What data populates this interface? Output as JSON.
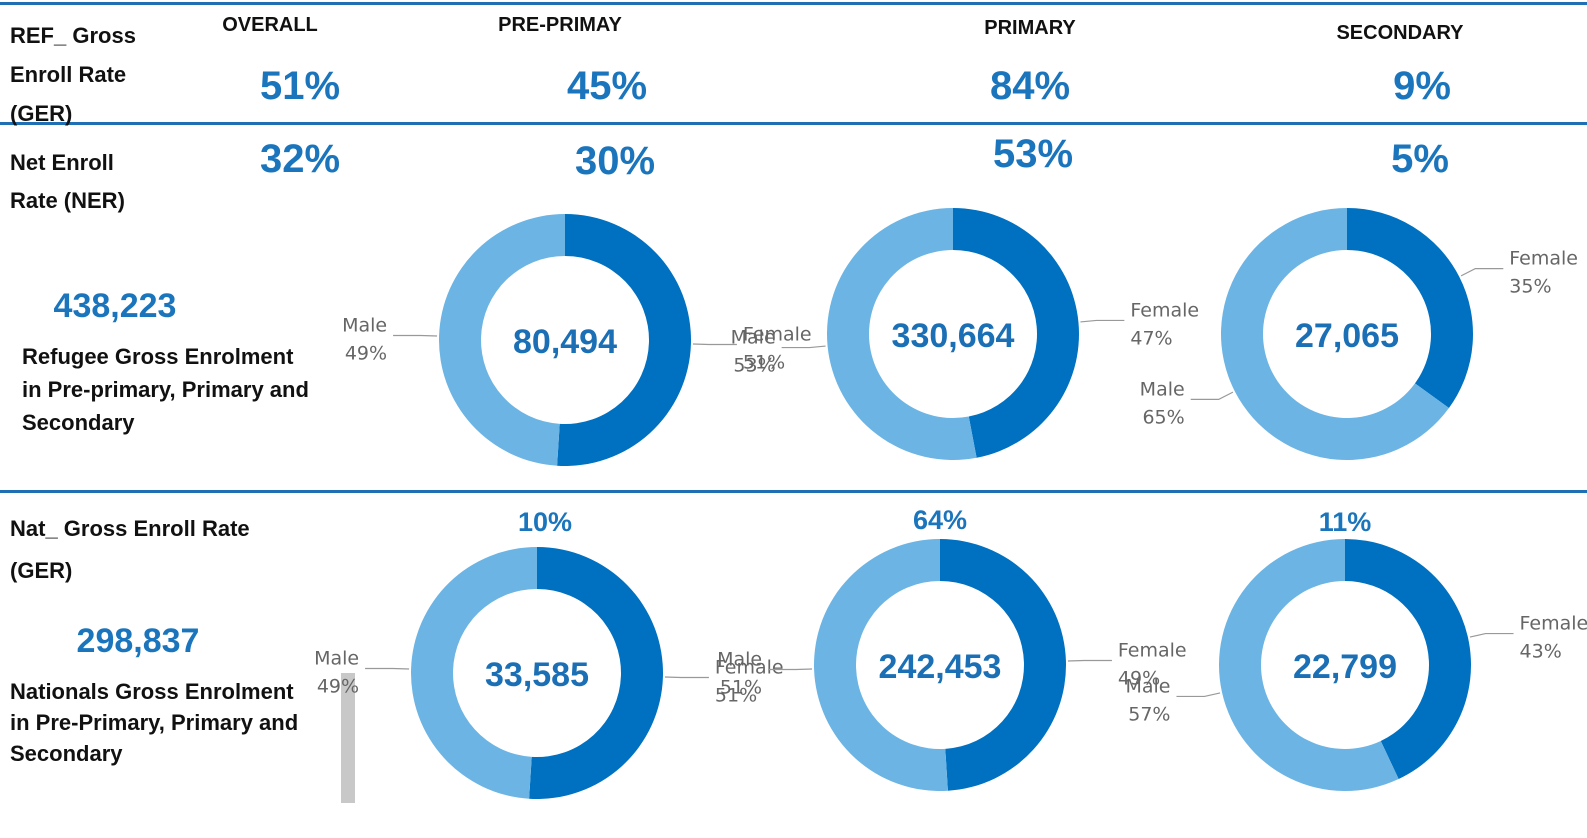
{
  "header": {
    "row_label": "REF_ Gross Enroll Rate (GER)",
    "columns": [
      "OVERALL",
      "PRE-PRIMAY",
      "PRIMARY",
      "SECONDARY"
    ],
    "values": [
      "51%",
      "45%",
      "84%",
      "9%"
    ]
  },
  "net": {
    "label": "Net Enroll Rate (NER)",
    "values": [
      "32%",
      "30%",
      "53%",
      "5%"
    ]
  },
  "refugee": {
    "total": "438,223",
    "caption": "Refugee Gross Enrolment in Pre-primary, Primary and Secondary"
  },
  "nationals": {
    "label": "Nat_ Gross Enroll Rate (GER)",
    "rates": [
      "10%",
      "64%",
      "11%"
    ],
    "total": "298,837",
    "caption": "Nationals Gross Enrolment in Pre-Primary, Primary and Secondary"
  },
  "chart_data": [
    {
      "type": "donut",
      "center_label": "80,494",
      "categories": [
        "Female",
        "Male"
      ],
      "values": [
        51,
        49
      ],
      "value_labels": [
        "51%",
        "49%"
      ],
      "colors": [
        "#0070c0",
        "#6cb4e4"
      ]
    },
    {
      "type": "donut",
      "center_label": "330,664",
      "categories": [
        "Female",
        "Male"
      ],
      "values": [
        47,
        53
      ],
      "value_labels": [
        "47%",
        "53%"
      ],
      "colors": [
        "#0070c0",
        "#6cb4e4"
      ]
    },
    {
      "type": "donut",
      "center_label": "27,065",
      "categories": [
        "Female",
        "Male"
      ],
      "values": [
        35,
        65
      ],
      "value_labels": [
        "35%",
        "65%"
      ],
      "colors": [
        "#0070c0",
        "#6cb4e4"
      ]
    },
    {
      "type": "donut",
      "center_label": "33,585",
      "categories": [
        "Female",
        "Male"
      ],
      "values": [
        51,
        49
      ],
      "value_labels": [
        "51%",
        "49%"
      ],
      "colors": [
        "#0070c0",
        "#6cb4e4"
      ]
    },
    {
      "type": "donut",
      "center_label": "242,453",
      "categories": [
        "Female",
        "Male"
      ],
      "values": [
        49,
        51
      ],
      "value_labels": [
        "49%",
        "51%"
      ],
      "colors": [
        "#0070c0",
        "#6cb4e4"
      ]
    },
    {
      "type": "donut",
      "center_label": "22,799",
      "categories": [
        "Female",
        "Male"
      ],
      "values": [
        43,
        57
      ],
      "value_labels": [
        "43%",
        "57%"
      ],
      "colors": [
        "#0070c0",
        "#6cb4e4"
      ]
    }
  ]
}
